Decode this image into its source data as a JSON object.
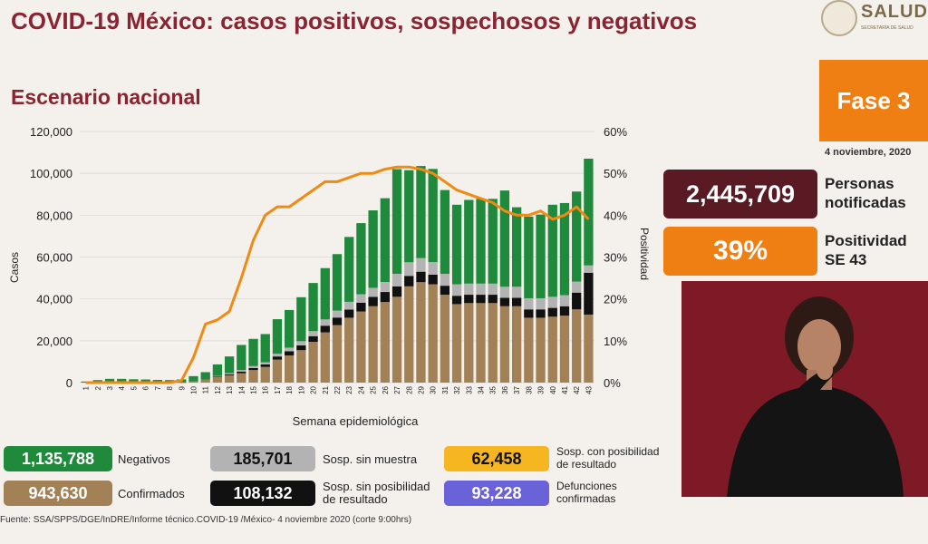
{
  "header": {
    "title": "COVID-19 México: casos positivos, sospechosos y negativos",
    "subtitle": "Escenario nacional",
    "logo_text": "SALUD",
    "logo_subtext": "SECRETARÍA DE SALUD"
  },
  "side": {
    "fase": "Fase 3",
    "date": "4 noviembre, 2020",
    "personas_value": "2,445,709",
    "personas_label": "Personas notificadas",
    "positividad_value": "39%",
    "positividad_label": "Positividad SE 43"
  },
  "legend": {
    "negativos_value": "1,135,788",
    "negativos_label": "Negativos",
    "sosp_sin_muestra_value": "185,701",
    "sosp_sin_muestra_label": "Sosp. sin muestra",
    "sosp_con_pos_value": "62,458",
    "sosp_con_pos_label": "Sosp. con posibilidad de resultado",
    "confirmados_value": "943,630",
    "confirmados_label": "Confirmados",
    "sosp_sin_pos_value": "108,132",
    "sosp_sin_pos_label": "Sosp. sin posibilidad de resultado",
    "defunciones_value": "93,228",
    "defunciones_label": "Defunciones confirmadas"
  },
  "footer": "Fuente: SSA/SPPS/DGE/InDRE/Informe técnico.COVID-19 /México- 4 noviembre 2020 (corte 9:00hrs)",
  "colors": {
    "confirmados": "#a38157",
    "sosp_sin_pos": "#111111",
    "sosp_sin_muestra": "#b3b3b3",
    "sosp_con_pos": "#f5b622",
    "negativos": "#1f8a3b",
    "positividad": "#f08a13",
    "defunciones": "#6a62d8"
  },
  "chart_data": {
    "type": "bar",
    "stacked": true,
    "xlabel": "Semana epidemiológica",
    "ylabel": "Casos",
    "y2label": "Positividad",
    "ylim": [
      0,
      120000
    ],
    "y2lim": [
      0,
      60
    ],
    "yticks": [
      "0",
      "20,000",
      "40,000",
      "60,000",
      "80,000",
      "100,000",
      "120,000"
    ],
    "y2ticks": [
      "0%",
      "10%",
      "20%",
      "30%",
      "40%",
      "50%",
      "60%"
    ],
    "categories": [
      "1",
      "2",
      "3",
      "4",
      "5",
      "6",
      "7",
      "8",
      "9",
      "10",
      "11",
      "12",
      "13",
      "14",
      "15",
      "16",
      "17",
      "18",
      "19",
      "20",
      "21",
      "22",
      "23",
      "24",
      "25",
      "26",
      "27",
      "28",
      "29",
      "30",
      "31",
      "32",
      "33",
      "34",
      "35",
      "36",
      "37",
      "38",
      "39",
      "40",
      "41",
      "42",
      "43"
    ],
    "series": [
      {
        "key": "confirmados",
        "values": [
          0,
          0,
          0,
          0,
          0,
          0,
          0,
          0,
          50,
          600,
          1500,
          2600,
          3500,
          4500,
          6000,
          7500,
          11000,
          13000,
          15500,
          19500,
          24000,
          27500,
          31000,
          34000,
          36500,
          38500,
          41000,
          46000,
          48000,
          47000,
          42000,
          37500,
          38000,
          38000,
          38000,
          36500,
          36500,
          31000,
          31000,
          31500,
          32000,
          35000,
          32500
        ]
      },
      {
        "key": "sosp_sin_pos",
        "values": [
          0,
          0,
          0,
          0,
          0,
          0,
          0,
          0,
          0,
          0,
          0,
          300,
          500,
          800,
          1000,
          1200,
          1500,
          2000,
          2300,
          2700,
          3200,
          3600,
          3900,
          4200,
          4500,
          4800,
          5000,
          5000,
          5000,
          4600,
          4300,
          4000,
          4000,
          4000,
          4000,
          4000,
          4000,
          4000,
          4000,
          4200,
          4500,
          8000,
          20000
        ]
      },
      {
        "key": "sosp_sin_muestra",
        "values": [
          0,
          0,
          0,
          0,
          0,
          0,
          0,
          0,
          0,
          0,
          0,
          300,
          500,
          700,
          900,
          1000,
          1300,
          1700,
          2000,
          2400,
          3000,
          3300,
          3700,
          4000,
          4300,
          4800,
          6000,
          6500,
          6500,
          6000,
          5700,
          5500,
          5300,
          5300,
          5300,
          5300,
          5300,
          5300,
          5300,
          5300,
          5300,
          5300,
          3500
        ]
      },
      {
        "key": "sosp_con_pos",
        "values": [
          0,
          0,
          0,
          0,
          0,
          0,
          0,
          0,
          0,
          0,
          0,
          0,
          0,
          0,
          0,
          0,
          0,
          0,
          0,
          0,
          0,
          0,
          0,
          0,
          0,
          0,
          0,
          0,
          0,
          0,
          0,
          0,
          0,
          0,
          0,
          0,
          0,
          0,
          0,
          0,
          0,
          0,
          0
        ]
      },
      {
        "key": "negativos",
        "values": [
          500,
          1200,
          1800,
          1800,
          1600,
          1500,
          1300,
          1200,
          1500,
          2500,
          3500,
          5500,
          8000,
          12000,
          13000,
          13500,
          16500,
          18000,
          21000,
          23000,
          24500,
          27000,
          31000,
          34000,
          37000,
          40000,
          50000,
          44000,
          44000,
          44500,
          40000,
          38000,
          40000,
          40500,
          40500,
          46000,
          38000,
          39000,
          40000,
          44000,
          44000,
          43000,
          51000
        ]
      },
      {
        "key": "positividad",
        "axis": "y2",
        "values": [
          0,
          0,
          0,
          0,
          0,
          0,
          0,
          0,
          0.5,
          6,
          14,
          15,
          17,
          25,
          34,
          40,
          42,
          42,
          44,
          46,
          48,
          48,
          49,
          50,
          50,
          51,
          51.5,
          51.5,
          51,
          50,
          48,
          46,
          45,
          44,
          43,
          41,
          40,
          40,
          41,
          39,
          40,
          42,
          39
        ]
      }
    ]
  }
}
